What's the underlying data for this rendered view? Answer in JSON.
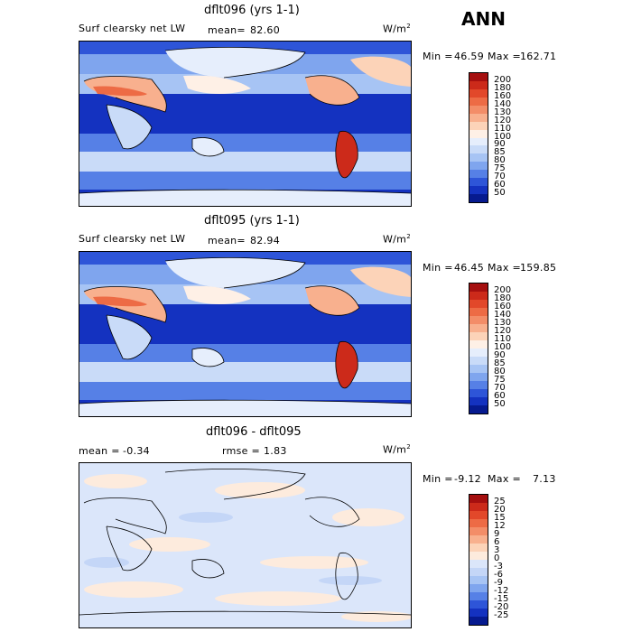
{
  "header": {
    "season": "ANN"
  },
  "panels": [
    {
      "title": "dflt096 (yrs 1-1)",
      "left_label": "Surf clearsky net LW",
      "stat_label": "mean=",
      "stat_value": "82.60",
      "unit": "W/m",
      "unit_sup": "2",
      "min_label": "Min =",
      "min_value": "46.59",
      "max_label": "Max =",
      "max_value": "162.71",
      "levels": [
        "200",
        "180",
        "160",
        "140",
        "130",
        "120",
        "110",
        "100",
        "90",
        "85",
        "80",
        "75",
        "70",
        "60",
        "50"
      ],
      "colors": [
        "#a50f0f",
        "#cc2a1a",
        "#e2482a",
        "#ed6b45",
        "#f38d68",
        "#f8b08e",
        "#fcd3b8",
        "#fef0e6",
        "#e6eefc",
        "#c9dbf8",
        "#a7c4f4",
        "#7fa5ee",
        "#5680e6",
        "#2e55d8",
        "#1432c0",
        "#061a8f"
      ]
    },
    {
      "title": "dflt095 (yrs 1-1)",
      "left_label": "Surf clearsky net LW",
      "stat_label": "mean=",
      "stat_value": "82.94",
      "unit": "W/m",
      "unit_sup": "2",
      "min_label": "Min =",
      "min_value": "46.45",
      "max_label": "Max =",
      "max_value": "159.85",
      "levels": [
        "200",
        "180",
        "160",
        "140",
        "130",
        "120",
        "110",
        "100",
        "90",
        "85",
        "80",
        "75",
        "70",
        "60",
        "50"
      ],
      "colors": [
        "#a50f0f",
        "#cc2a1a",
        "#e2482a",
        "#ed6b45",
        "#f38d68",
        "#f8b08e",
        "#fcd3b8",
        "#fef0e6",
        "#e6eefc",
        "#c9dbf8",
        "#a7c4f4",
        "#7fa5ee",
        "#5680e6",
        "#2e55d8",
        "#1432c0",
        "#061a8f"
      ]
    },
    {
      "title": "dflt096 - dflt095",
      "left_label": "mean =",
      "left_value": "-0.34",
      "stat_label": "rmse =",
      "stat_value": "1.83",
      "unit": "W/m",
      "unit_sup": "2",
      "min_label": "Min =",
      "min_value": "-9.12",
      "max_label": "Max =",
      "max_value": "7.13",
      "levels": [
        "25",
        "20",
        "15",
        "12",
        "9",
        "6",
        "3",
        "0",
        "-3",
        "-6",
        "-9",
        "-12",
        "-15",
        "-20",
        "-25"
      ],
      "colors": [
        "#a50f0f",
        "#cc2a1a",
        "#e2482a",
        "#ed6b45",
        "#f38d68",
        "#f8b08e",
        "#fcd3b8",
        "#fdebdd",
        "#dbe6fa",
        "#c4d6f7",
        "#a7c4f4",
        "#7fa5ee",
        "#5680e6",
        "#2e55d8",
        "#1432c0",
        "#061a8f"
      ]
    }
  ]
}
